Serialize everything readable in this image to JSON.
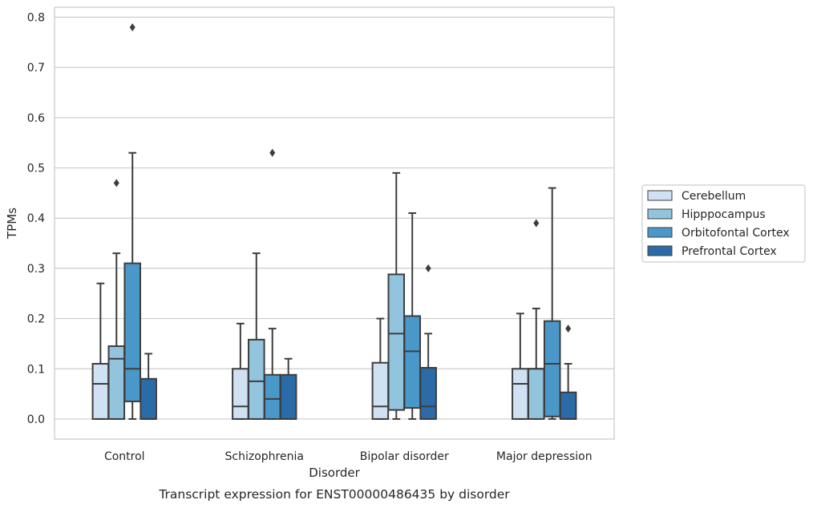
{
  "chart_data": {
    "type": "box",
    "caption": "Transcript expression for ENST00000486435 by disorder",
    "xlabel": "Disorder",
    "ylabel": "TPMs",
    "ylim": [
      -0.04,
      0.82
    ],
    "yticks": [
      0.0,
      0.1,
      0.2,
      0.3,
      0.4,
      0.5,
      0.6,
      0.7,
      0.8
    ],
    "ytick_labels": [
      "0.0",
      "0.1",
      "0.2",
      "0.3",
      "0.4",
      "0.5",
      "0.6",
      "0.7",
      "0.8"
    ],
    "grid": true,
    "legend_position": "right",
    "categories": [
      "Control",
      "Schizophrenia",
      "Bipolar disorder",
      "Major depression"
    ],
    "series": [
      {
        "name": "Cerebellum",
        "color": "#cfe1f2",
        "boxes": [
          {
            "whisker_low": 0.0,
            "q1": 0.0,
            "median": 0.07,
            "q3": 0.11,
            "whisker_high": 0.27,
            "outliers": []
          },
          {
            "whisker_low": 0.0,
            "q1": 0.0,
            "median": 0.025,
            "q3": 0.1,
            "whisker_high": 0.19,
            "outliers": []
          },
          {
            "whisker_low": 0.0,
            "q1": 0.0,
            "median": 0.025,
            "q3": 0.112,
            "whisker_high": 0.2,
            "outliers": []
          },
          {
            "whisker_low": 0.0,
            "q1": 0.0,
            "median": 0.07,
            "q3": 0.1,
            "whisker_high": 0.21,
            "outliers": []
          }
        ]
      },
      {
        "name": "Hipppocampus",
        "color": "#93c4de",
        "boxes": [
          {
            "whisker_low": 0.0,
            "q1": 0.0,
            "median": 0.12,
            "q3": 0.145,
            "whisker_high": 0.33,
            "outliers": [
              0.47
            ]
          },
          {
            "whisker_low": 0.0,
            "q1": 0.0,
            "median": 0.075,
            "q3": 0.158,
            "whisker_high": 0.33,
            "outliers": []
          },
          {
            "whisker_low": 0.0,
            "q1": 0.018,
            "median": 0.17,
            "q3": 0.288,
            "whisker_high": 0.49,
            "outliers": []
          },
          {
            "whisker_low": 0.0,
            "q1": 0.0,
            "median": 0.1,
            "q3": 0.1,
            "whisker_high": 0.22,
            "outliers": [
              0.39
            ]
          }
        ]
      },
      {
        "name": "Orbitofontal Cortex",
        "color": "#4a98c9",
        "boxes": [
          {
            "whisker_low": 0.0,
            "q1": 0.035,
            "median": 0.1,
            "q3": 0.31,
            "whisker_high": 0.53,
            "outliers": [
              0.78
            ]
          },
          {
            "whisker_low": 0.0,
            "q1": 0.0,
            "median": 0.04,
            "q3": 0.088,
            "whisker_high": 0.18,
            "outliers": [
              0.53
            ]
          },
          {
            "whisker_low": 0.0,
            "q1": 0.022,
            "median": 0.135,
            "q3": 0.205,
            "whisker_high": 0.41,
            "outliers": []
          },
          {
            "whisker_low": 0.0,
            "q1": 0.005,
            "median": 0.11,
            "q3": 0.195,
            "whisker_high": 0.46,
            "outliers": []
          }
        ]
      },
      {
        "name": "Prefrontal Cortex",
        "color": "#2b6ba8",
        "boxes": [
          {
            "whisker_low": 0.0,
            "q1": 0.0,
            "median": 0.0,
            "q3": 0.08,
            "whisker_high": 0.13,
            "outliers": []
          },
          {
            "whisker_low": 0.0,
            "q1": 0.0,
            "median": 0.0,
            "q3": 0.088,
            "whisker_high": 0.12,
            "outliers": []
          },
          {
            "whisker_low": 0.0,
            "q1": 0.0,
            "median": 0.025,
            "q3": 0.102,
            "whisker_high": 0.17,
            "outliers": [
              0.3
            ]
          },
          {
            "whisker_low": 0.0,
            "q1": 0.0,
            "median": 0.0,
            "q3": 0.053,
            "whisker_high": 0.11,
            "outliers": [
              0.18
            ]
          }
        ]
      }
    ]
  }
}
